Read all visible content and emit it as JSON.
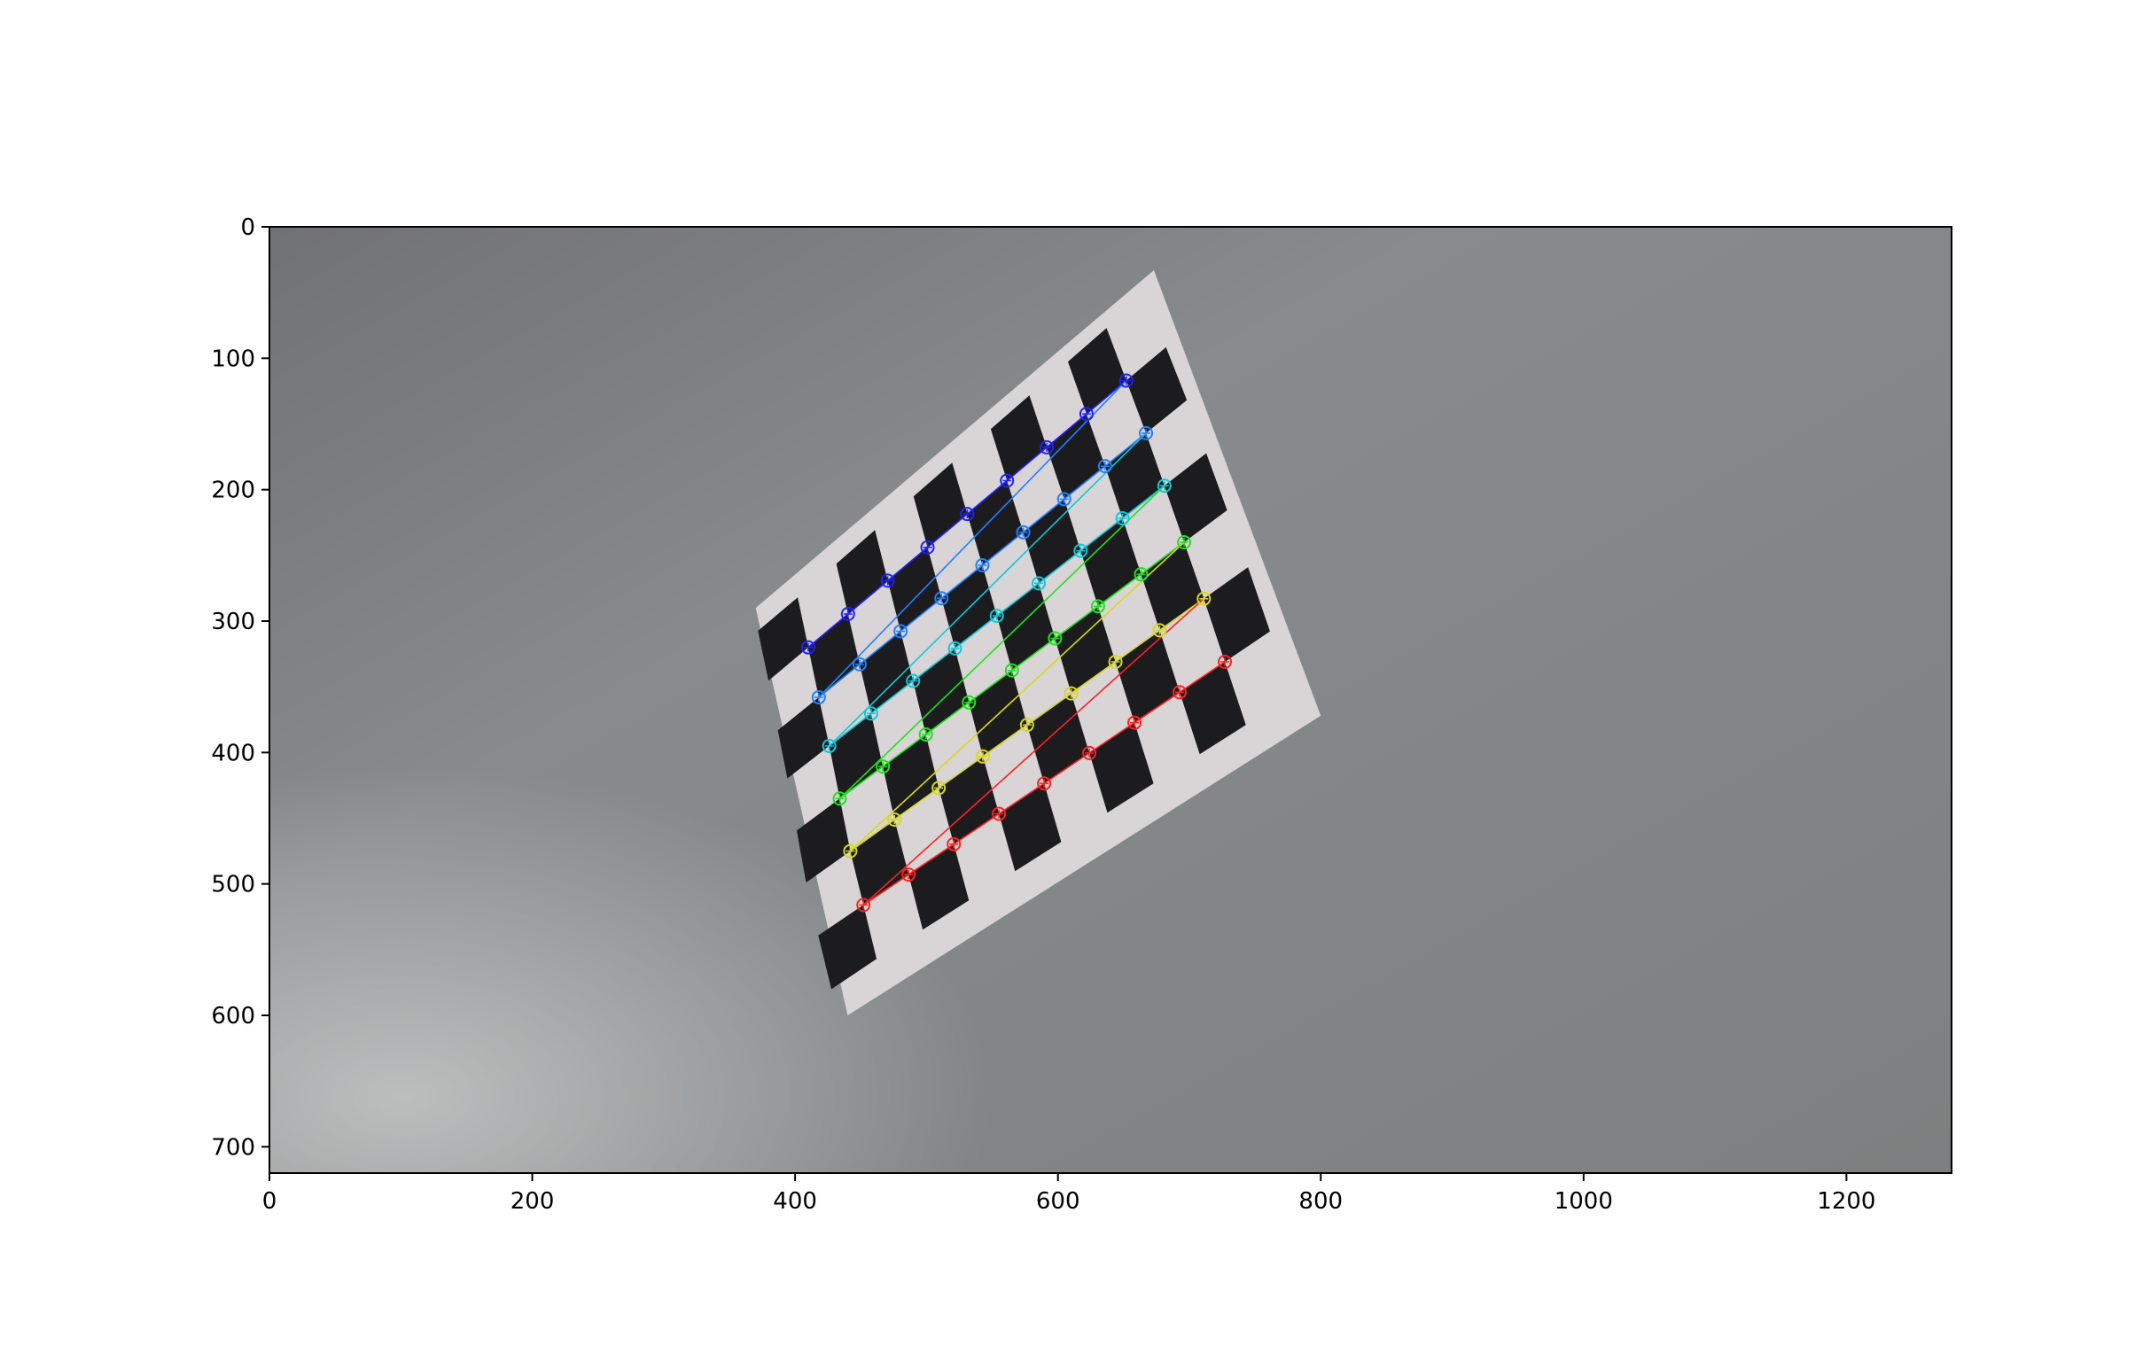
{
  "image": {
    "kind": "photo of a printed checkerboard calibration target on a grey floor, with detected corners drawn",
    "background_color": "#8a8d8d",
    "board_square_color": "#1c1c1f",
    "board_paper_color": "#d9d4d6"
  },
  "axes": {
    "x_ticks": [
      {
        "value": 0,
        "label": "0"
      },
      {
        "value": 200,
        "label": "200"
      },
      {
        "value": 400,
        "label": "400"
      },
      {
        "value": 600,
        "label": "600"
      },
      {
        "value": 800,
        "label": "800"
      },
      {
        "value": 1000,
        "label": "1000"
      },
      {
        "value": 1200,
        "label": "1200"
      }
    ],
    "y_ticks": [
      {
        "value": 0,
        "label": "0"
      },
      {
        "value": 100,
        "label": "100"
      },
      {
        "value": 200,
        "label": "200"
      },
      {
        "value": 300,
        "label": "300"
      },
      {
        "value": 400,
        "label": "400"
      },
      {
        "value": 500,
        "label": "500"
      },
      {
        "value": 600,
        "label": "600"
      },
      {
        "value": 700,
        "label": "700"
      }
    ],
    "xlim": [
      0,
      1280
    ],
    "ylim": [
      720,
      0
    ]
  },
  "corner_grid": {
    "cols": 9,
    "rows": 6,
    "row_colors": [
      "#2020ff",
      "#2080ff",
      "#10c8d8",
      "#20e020",
      "#d8d820",
      "#ff2020"
    ],
    "row_start": [
      [
        410,
        320
      ],
      [
        418,
        358
      ],
      [
        426,
        395
      ],
      [
        434,
        435
      ],
      [
        442,
        475
      ],
      [
        452,
        516
      ]
    ],
    "row_end": [
      [
        652,
        117
      ],
      [
        667,
        157
      ],
      [
        681,
        197
      ],
      [
        696,
        240
      ],
      [
        711,
        283
      ],
      [
        727,
        331
      ]
    ]
  },
  "board": {
    "paper_quad": [
      [
        370,
        290
      ],
      [
        673,
        33
      ],
      [
        800,
        372
      ],
      [
        440,
        600
      ]
    ]
  }
}
